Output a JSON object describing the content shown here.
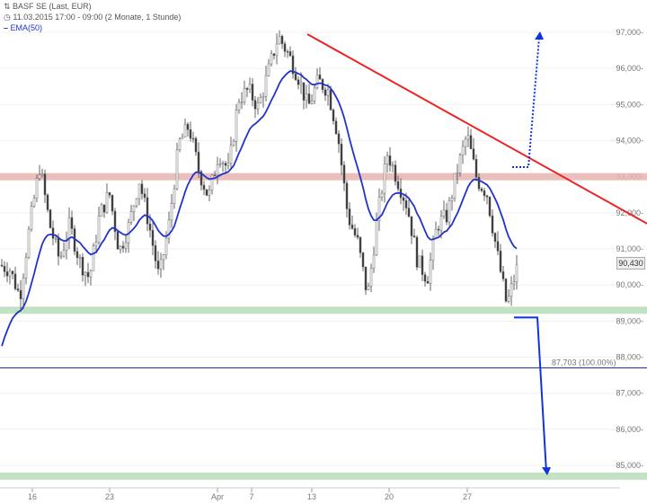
{
  "header": {
    "instrument": "BASF SE (Last, EUR)",
    "period": "11.03.2015 17:00 - 09:00 (2 Monate, 1 Stunde)",
    "indicator": "EMA(50)"
  },
  "last_price_label": "90,430",
  "reference_label": "87,703 (100.00%)",
  "colors": {
    "ema": "#2233cc",
    "trendline": "#ee2222",
    "resistance": "#e8b4b0",
    "support": "#b8dcb8",
    "candle": "#666666",
    "arrow": "#1133dd"
  },
  "chart_data": {
    "type": "candlestick",
    "title": "",
    "ylim": [
      84500,
      97400
    ],
    "y_ticks": [
      "97,000",
      "96,000",
      "95,000",
      "94,000",
      "93,000",
      "92,000",
      "91,000",
      "90,000",
      "89,000",
      "88,000",
      "87,000",
      "86,000",
      "85,000"
    ],
    "x_ticks": [
      "16",
      "23",
      "Apr",
      "7",
      "13",
      "20",
      "27"
    ],
    "closes": [
      90552,
      90426,
      89679,
      91671,
      93290,
      91671,
      90675,
      91671,
      90675,
      90177,
      91920,
      92543,
      90924,
      91671,
      92916,
      91671,
      90177,
      91671,
      93912,
      94410,
      93165,
      92418,
      93663,
      93165,
      95157,
      95406,
      94908,
      95904,
      96900,
      96402,
      95780,
      94908,
      95655,
      95406,
      94161,
      91920,
      91173,
      89679,
      91920,
      93663,
      92916,
      92169,
      90675,
      90177,
      91671,
      91920,
      93165,
      94161,
      92916,
      92543,
      90924,
      89430,
      90430
    ],
    "last": 90430,
    "ema_period": 50,
    "reference_level": 87703,
    "resistance_band": 93000,
    "support_bands": [
      89300,
      84700
    ],
    "trendline": {
      "from": 96950,
      "to": 91700
    },
    "projection_target_down": 84800,
    "projection_target_up": 97000
  }
}
